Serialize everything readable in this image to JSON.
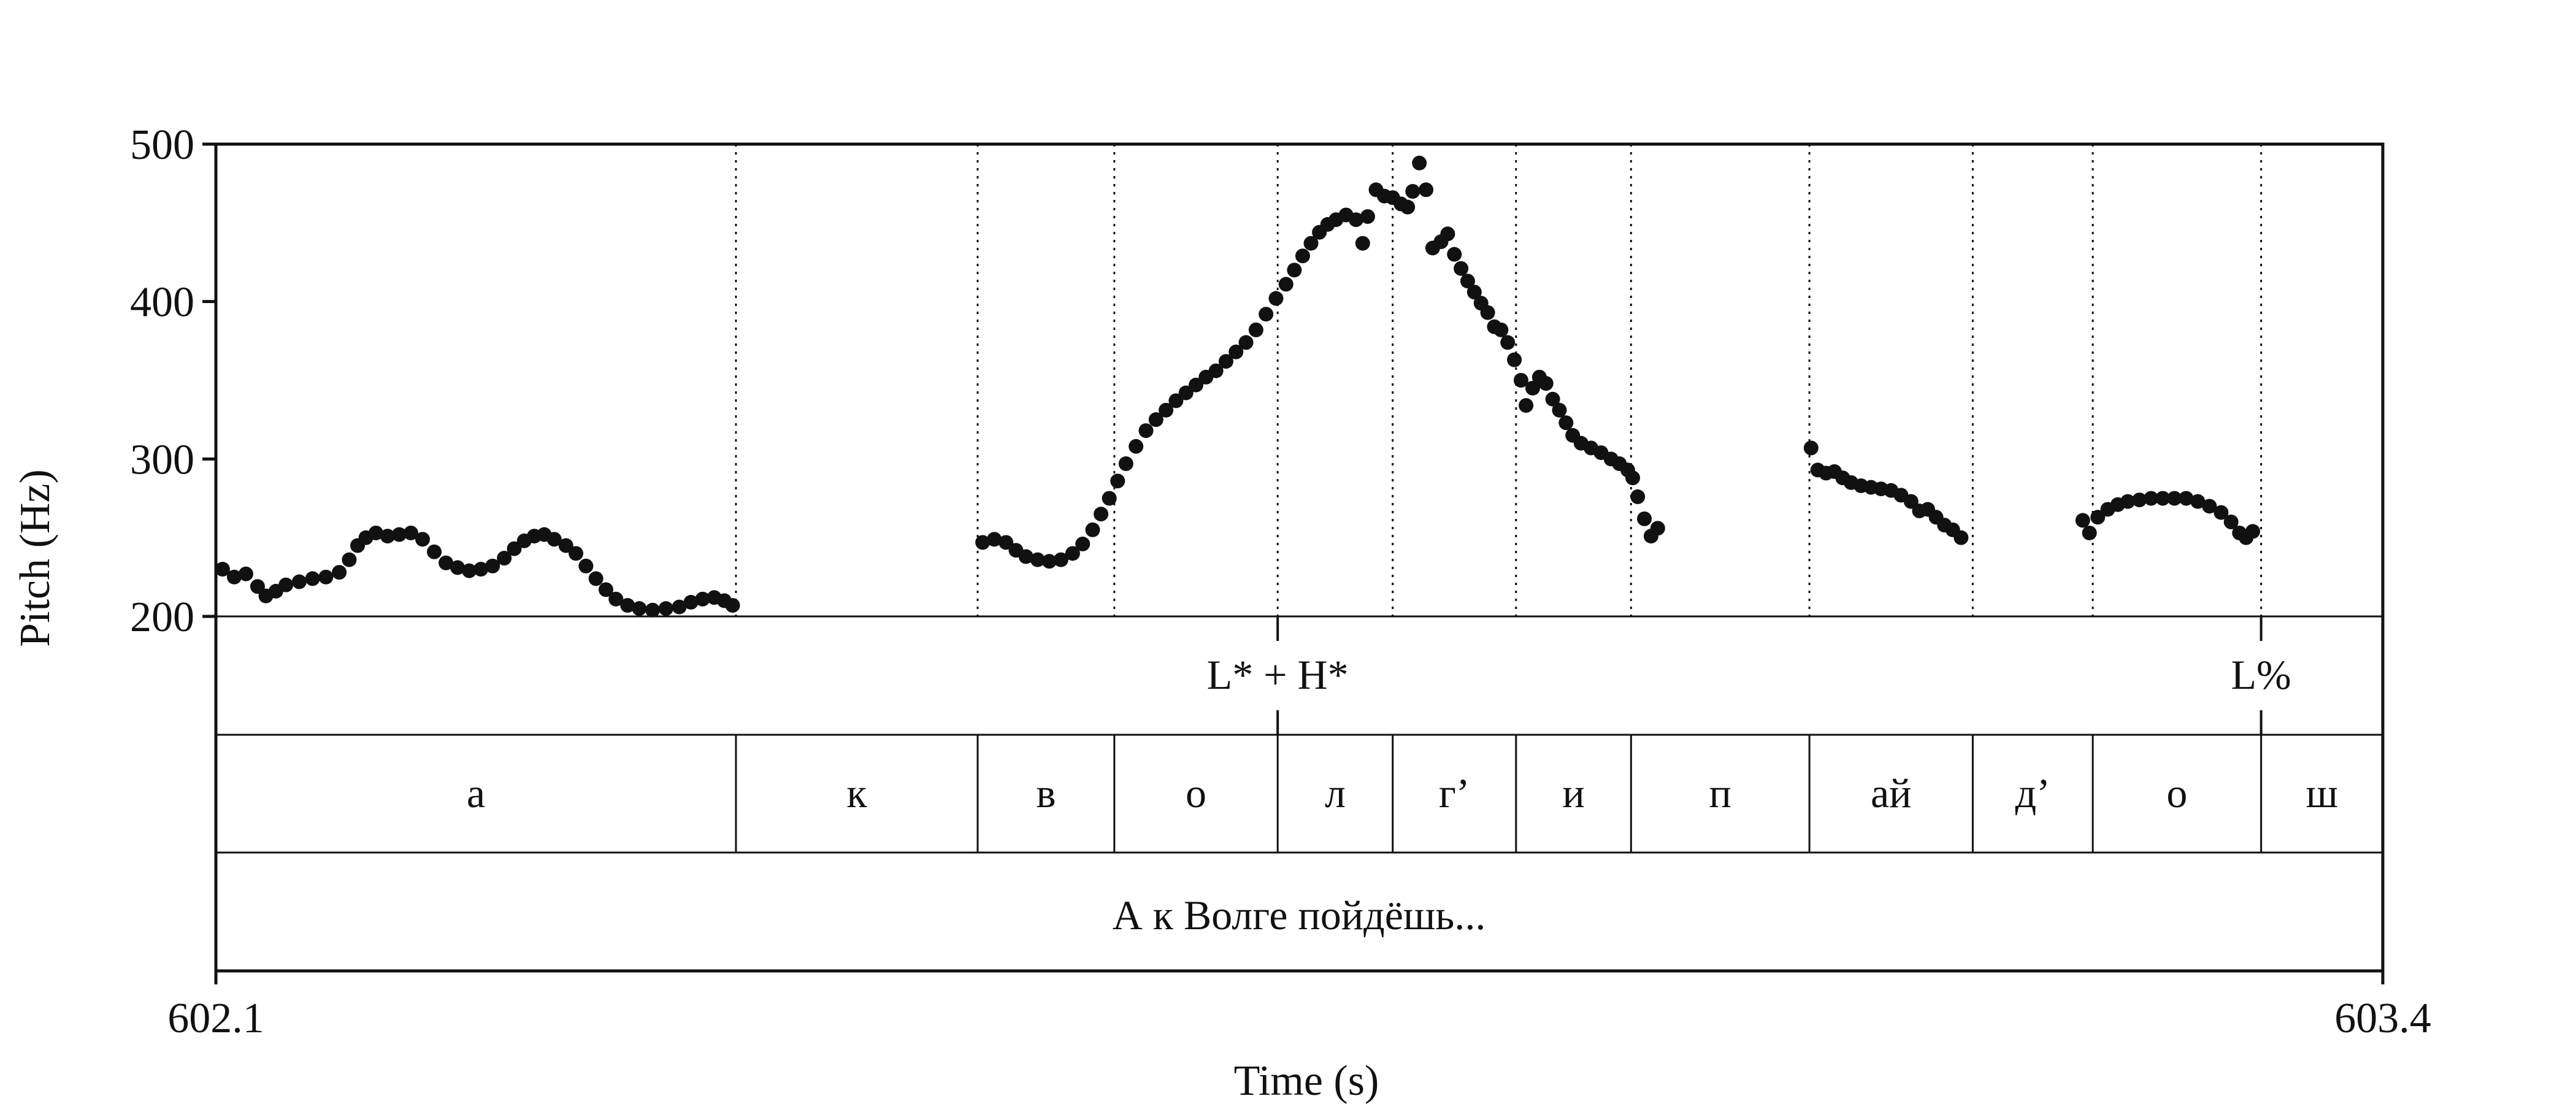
{
  "chart_data": {
    "type": "scatter",
    "ylabel": "Pitch (Hz)",
    "xlabel": "Time (s)",
    "xlim": [
      602.1,
      603.4
    ],
    "ylim": [
      200,
      500
    ],
    "yticks": [
      200,
      300,
      400,
      500
    ],
    "xtick_labels": [
      "602.1",
      "603.4"
    ],
    "boundaries": [
      602.412,
      602.557,
      602.639,
      602.737,
      602.806,
      602.88,
      602.949,
      603.056,
      603.154,
      603.226,
      603.327
    ],
    "tone_tier": [
      {
        "t": 602.737,
        "label": "L* + H*"
      },
      {
        "t": 603.327,
        "label": "L%"
      }
    ],
    "segments": [
      {
        "start": 602.1,
        "end": 602.412,
        "label": "а"
      },
      {
        "start": 602.412,
        "end": 602.557,
        "label": "к"
      },
      {
        "start": 602.557,
        "end": 602.639,
        "label": "в"
      },
      {
        "start": 602.639,
        "end": 602.737,
        "label": "о"
      },
      {
        "start": 602.737,
        "end": 602.806,
        "label": "л"
      },
      {
        "start": 602.806,
        "end": 602.88,
        "label": "г’"
      },
      {
        "start": 602.88,
        "end": 602.949,
        "label": "и"
      },
      {
        "start": 602.949,
        "end": 603.056,
        "label": "п"
      },
      {
        "start": 603.056,
        "end": 603.154,
        "label": "ай"
      },
      {
        "start": 603.154,
        "end": 603.226,
        "label": "д’"
      },
      {
        "start": 603.226,
        "end": 603.327,
        "label": "о"
      },
      {
        "start": 603.327,
        "end": 603.4,
        "label": "ш"
      }
    ],
    "utterance": "А к Волге пойдёшь...",
    "series": [
      {
        "values": [
          [
            602.104,
            230
          ],
          [
            602.111,
            225
          ],
          [
            602.118,
            227
          ],
          [
            602.125,
            219
          ],
          [
            602.13,
            213
          ],
          [
            602.136,
            216
          ],
          [
            602.142,
            220
          ],
          [
            602.15,
            222
          ],
          [
            602.158,
            224
          ],
          [
            602.166,
            225
          ],
          [
            602.174,
            228
          ],
          [
            602.18,
            236
          ],
          [
            602.185,
            245
          ],
          [
            602.19,
            250
          ],
          [
            602.196,
            253
          ],
          [
            602.203,
            251
          ],
          [
            602.21,
            252
          ],
          [
            602.217,
            253
          ],
          [
            602.224,
            249
          ],
          [
            602.231,
            241
          ],
          [
            602.238,
            234
          ],
          [
            602.245,
            231
          ],
          [
            602.252,
            229
          ],
          [
            602.259,
            230
          ],
          [
            602.266,
            232
          ],
          [
            602.273,
            237
          ],
          [
            602.279,
            243
          ],
          [
            602.285,
            248
          ],
          [
            602.291,
            251
          ],
          [
            602.297,
            252
          ],
          [
            602.303,
            249
          ],
          [
            602.31,
            245
          ],
          [
            602.316,
            240
          ],
          [
            602.322,
            232
          ],
          [
            602.328,
            224
          ],
          [
            602.334,
            217
          ],
          [
            602.34,
            211
          ],
          [
            602.347,
            207
          ],
          [
            602.354,
            205
          ],
          [
            602.362,
            204
          ],
          [
            602.37,
            205
          ],
          [
            602.378,
            206
          ],
          [
            602.385,
            209
          ],
          [
            602.392,
            211
          ],
          [
            602.399,
            212
          ],
          [
            602.405,
            210
          ],
          [
            602.41,
            207
          ],
          [
            602.56,
            247
          ],
          [
            602.567,
            249
          ],
          [
            602.574,
            247
          ],
          [
            602.58,
            242
          ],
          [
            602.586,
            238
          ],
          [
            602.593,
            236
          ],
          [
            602.6,
            235
          ],
          [
            602.607,
            236
          ],
          [
            602.614,
            240
          ],
          [
            602.62,
            246
          ],
          [
            602.626,
            255
          ],
          [
            602.631,
            265
          ],
          [
            602.636,
            275
          ],
          [
            602.641,
            286
          ],
          [
            602.646,
            297
          ],
          [
            602.652,
            308
          ],
          [
            602.658,
            318
          ],
          [
            602.664,
            325
          ],
          [
            602.67,
            331
          ],
          [
            602.676,
            337
          ],
          [
            602.682,
            342
          ],
          [
            602.688,
            347
          ],
          [
            602.694,
            352
          ],
          [
            602.7,
            356
          ],
          [
            602.706,
            362
          ],
          [
            602.712,
            368
          ],
          [
            602.718,
            374
          ],
          [
            602.724,
            382
          ],
          [
            602.73,
            392
          ],
          [
            602.736,
            402
          ],
          [
            602.742,
            411
          ],
          [
            602.747,
            420
          ],
          [
            602.752,
            429
          ],
          [
            602.757,
            437
          ],
          [
            602.762,
            444
          ],
          [
            602.767,
            449
          ],
          [
            602.772,
            452
          ],
          [
            602.778,
            455
          ],
          [
            602.784,
            452
          ],
          [
            602.788,
            437
          ],
          [
            602.791,
            454
          ],
          [
            602.796,
            471
          ],
          [
            602.801,
            467
          ],
          [
            602.806,
            466
          ],
          [
            602.811,
            462
          ],
          [
            602.815,
            460
          ],
          [
            602.818,
            470
          ],
          [
            602.822,
            488
          ],
          [
            602.826,
            471
          ],
          [
            602.83,
            434
          ],
          [
            602.835,
            438
          ],
          [
            602.839,
            443
          ],
          [
            602.843,
            430
          ],
          [
            602.847,
            421
          ],
          [
            602.851,
            413
          ],
          [
            602.855,
            406
          ],
          [
            602.859,
            399
          ],
          [
            602.863,
            393
          ],
          [
            602.867,
            384
          ],
          [
            602.871,
            382
          ],
          [
            602.875,
            374
          ],
          [
            602.879,
            363
          ],
          [
            602.883,
            350
          ],
          [
            602.886,
            334
          ],
          [
            602.89,
            345
          ],
          [
            602.894,
            352
          ],
          [
            602.898,
            348
          ],
          [
            602.902,
            338
          ],
          [
            602.906,
            331
          ],
          [
            602.91,
            323
          ],
          [
            602.914,
            315
          ],
          [
            602.919,
            310
          ],
          [
            602.925,
            307
          ],
          [
            602.931,
            304
          ],
          [
            602.937,
            300
          ],
          [
            602.942,
            297
          ],
          [
            602.947,
            293
          ],
          [
            602.95,
            288
          ],
          [
            602.953,
            276
          ],
          [
            602.957,
            262
          ],
          [
            602.961,
            251
          ],
          [
            602.965,
            256
          ],
          [
            603.057,
            307
          ],
          [
            603.061,
            293
          ],
          [
            603.066,
            291
          ],
          [
            603.071,
            292
          ],
          [
            603.076,
            288
          ],
          [
            603.081,
            285
          ],
          [
            603.087,
            283
          ],
          [
            603.093,
            282
          ],
          [
            603.099,
            281
          ],
          [
            603.105,
            280
          ],
          [
            603.111,
            277
          ],
          [
            603.117,
            273
          ],
          [
            603.122,
            267
          ],
          [
            603.127,
            268
          ],
          [
            603.132,
            263
          ],
          [
            603.137,
            258
          ],
          [
            603.142,
            255
          ],
          [
            603.147,
            250
          ],
          [
            603.22,
            261
          ],
          [
            603.224,
            253
          ],
          [
            603.229,
            263
          ],
          [
            603.235,
            268
          ],
          [
            603.241,
            271
          ],
          [
            603.247,
            273
          ],
          [
            603.254,
            274
          ],
          [
            603.261,
            275
          ],
          [
            603.268,
            275
          ],
          [
            603.275,
            275
          ],
          [
            603.282,
            275
          ],
          [
            603.289,
            273
          ],
          [
            603.296,
            270
          ],
          [
            603.303,
            266
          ],
          [
            603.309,
            260
          ],
          [
            603.314,
            253
          ],
          [
            603.318,
            250
          ],
          [
            603.322,
            254
          ]
        ]
      }
    ]
  }
}
